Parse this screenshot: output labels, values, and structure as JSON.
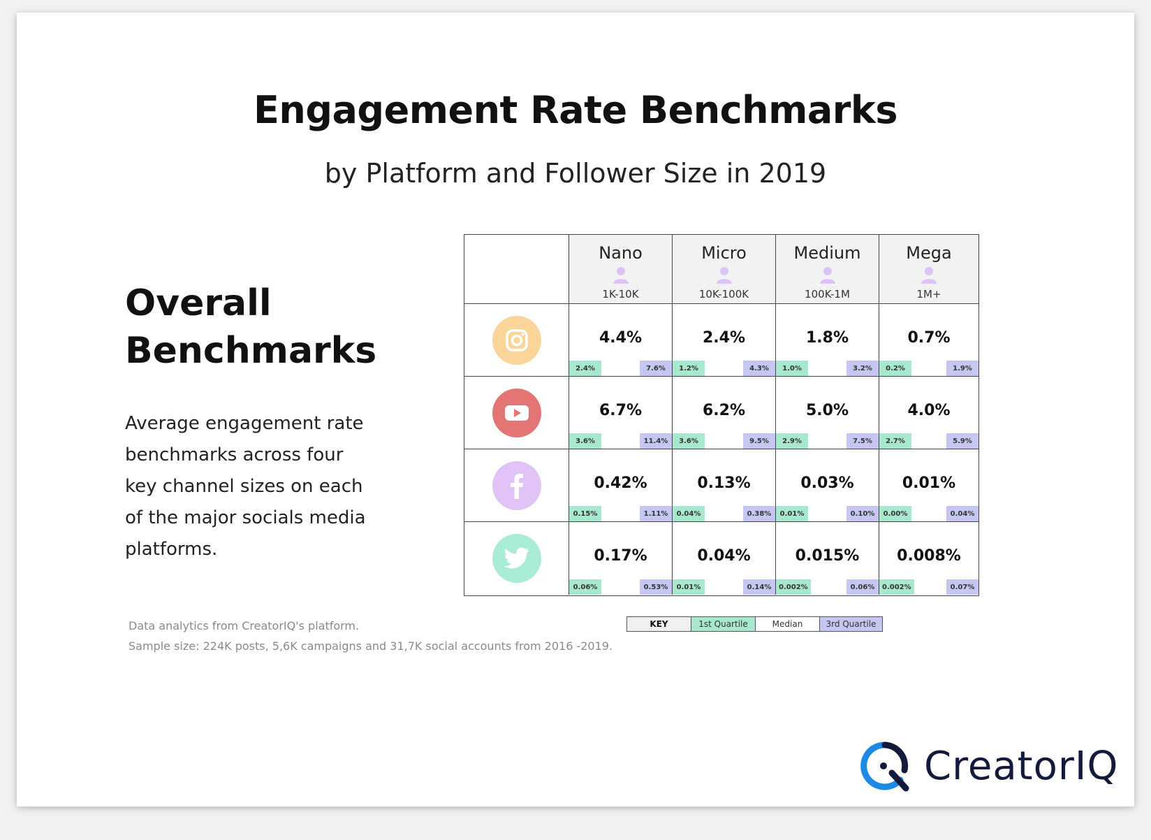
{
  "title": "Engagement Rate Benchmarks",
  "subtitle": "by Platform and Follower Size in 2019",
  "sidebar": {
    "heading": "Overall\nBenchmarks",
    "description": "Average engagement rate benchmarks across four key channel sizes on each of the major socials media platforms."
  },
  "colors": {
    "q1": "#a8e8cf",
    "q3": "#c6c6f2",
    "instagram": "#fbd49a",
    "youtube": "#e27473",
    "facebook": "#dfc3f7",
    "twitter": "#a9ebd6",
    "person": "#dcc2f7",
    "brand_blue": "#1e88e5",
    "brand_dark": "#141a3c"
  },
  "chart_data": {
    "type": "table",
    "title": "Engagement Rate Benchmarks",
    "subtitle": "by Platform and Follower Size in 2019",
    "columns": [
      {
        "name": "Nano",
        "range": "1K-10K"
      },
      {
        "name": "Micro",
        "range": "10K-100K"
      },
      {
        "name": "Medium",
        "range": "100K-1M"
      },
      {
        "name": "Mega",
        "range": "1M+"
      }
    ],
    "rows": [
      {
        "platform": "instagram",
        "icon": "instagram-icon",
        "cells": [
          {
            "median": "4.4%",
            "q1": "2.4%",
            "q3": "7.6%"
          },
          {
            "median": "2.4%",
            "q1": "1.2%",
            "q3": "4.3%"
          },
          {
            "median": "1.8%",
            "q1": "1.0%",
            "q3": "3.2%"
          },
          {
            "median": "0.7%",
            "q1": "0.2%",
            "q3": "1.9%"
          }
        ]
      },
      {
        "platform": "youtube",
        "icon": "youtube-icon",
        "cells": [
          {
            "median": "6.7%",
            "q1": "3.6%",
            "q3": "11.4%"
          },
          {
            "median": "6.2%",
            "q1": "3.6%",
            "q3": "9.5%"
          },
          {
            "median": "5.0%",
            "q1": "2.9%",
            "q3": "7.5%"
          },
          {
            "median": "4.0%",
            "q1": "2.7%",
            "q3": "5.9%"
          }
        ]
      },
      {
        "platform": "facebook",
        "icon": "facebook-icon",
        "cells": [
          {
            "median": "0.42%",
            "q1": "0.15%",
            "q3": "1.11%"
          },
          {
            "median": "0.13%",
            "q1": "0.04%",
            "q3": "0.38%"
          },
          {
            "median": "0.03%",
            "q1": "0.01%",
            "q3": "0.10%"
          },
          {
            "median": "0.01%",
            "q1": "0.00%",
            "q3": "0.04%"
          }
        ]
      },
      {
        "platform": "twitter",
        "icon": "twitter-icon",
        "cells": [
          {
            "median": "0.17%",
            "q1": "0.06%",
            "q3": "0.53%"
          },
          {
            "median": "0.04%",
            "q1": "0.01%",
            "q3": "0.14%"
          },
          {
            "median": "0.015%",
            "q1": "0.002%",
            "q3": "0.06%"
          },
          {
            "median": "0.008%",
            "q1": "0.002%",
            "q3": "0.07%"
          }
        ]
      }
    ],
    "key": {
      "label": "KEY",
      "q1": "1st Quartile",
      "median": "Median",
      "q3": "3rd Quartile"
    }
  },
  "footer": {
    "line1": "Data analytics from CreatorIQ's platform.",
    "line2": "Sample size: 224K posts, 5,6K campaigns and 31,7K social accounts from 2016 -2019."
  },
  "logo": {
    "text": "CreatorIQ"
  }
}
